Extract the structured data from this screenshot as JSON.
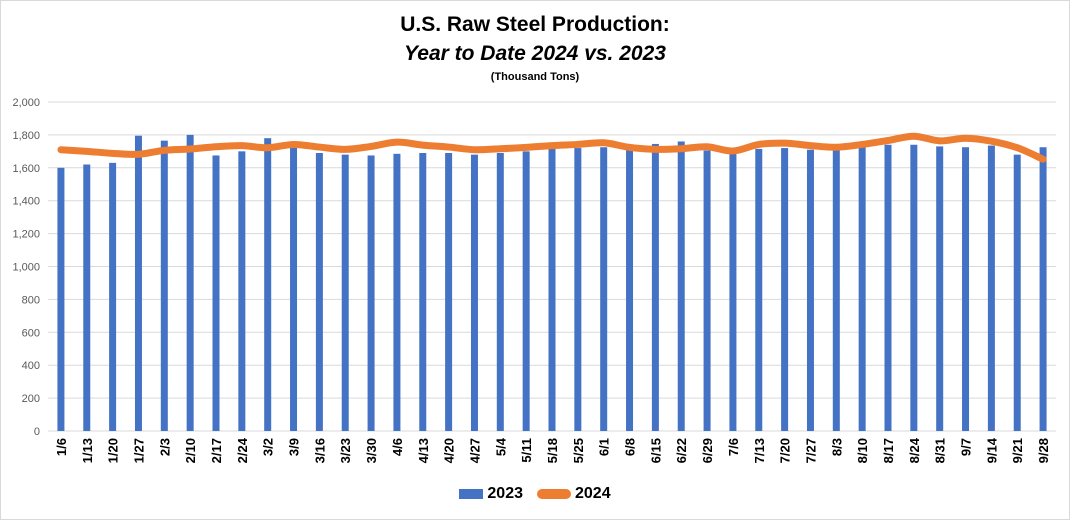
{
  "chart_data": {
    "type": "bar",
    "title": "U.S. Raw Steel Production:",
    "subtitle": "Year to Date 2024 vs. 2023",
    "unit_note": "(Thousand Tons)",
    "xlabel": "",
    "ylabel": "",
    "ylim": [
      0,
      2000
    ],
    "yticks": [
      0,
      200,
      400,
      600,
      800,
      1000,
      1200,
      1400,
      1600,
      1800,
      2000
    ],
    "ytick_labels": [
      "0",
      "200",
      "400",
      "600",
      "800",
      "1,000",
      "1,200",
      "1,400",
      "1,600",
      "1,800",
      "2,000"
    ],
    "grid": true,
    "legend_position": "bottom",
    "categories": [
      "1/6",
      "1/13",
      "1/20",
      "1/27",
      "2/3",
      "2/10",
      "2/17",
      "2/24",
      "3/2",
      "3/9",
      "3/16",
      "3/23",
      "3/30",
      "4/6",
      "4/13",
      "4/20",
      "4/27",
      "5/4",
      "5/11",
      "5/18",
      "5/25",
      "6/1",
      "6/8",
      "6/15",
      "6/22",
      "6/29",
      "7/6",
      "7/13",
      "7/20",
      "7/27",
      "8/3",
      "8/10",
      "8/17",
      "8/24",
      "8/31",
      "9/7",
      "9/14",
      "9/21",
      "9/28"
    ],
    "series": [
      {
        "name": "2023",
        "type": "bar",
        "color": "#4472C4",
        "values": [
          1600,
          1620,
          1630,
          1795,
          1765,
          1800,
          1675,
          1700,
          1780,
          1735,
          1690,
          1680,
          1675,
          1685,
          1690,
          1690,
          1680,
          1690,
          1700,
          1715,
          1720,
          1725,
          1710,
          1745,
          1760,
          1705,
          1685,
          1715,
          1720,
          1710,
          1715,
          1730,
          1740,
          1740,
          1730,
          1725,
          1735,
          1680,
          1725
        ]
      },
      {
        "name": "2024",
        "type": "line",
        "color": "#ED7D31",
        "values": [
          1710,
          1700,
          1688,
          1682,
          1706,
          1714,
          1728,
          1735,
          1722,
          1742,
          1726,
          1712,
          1730,
          1756,
          1738,
          1726,
          1710,
          1716,
          1724,
          1735,
          1742,
          1752,
          1724,
          1712,
          1716,
          1728,
          1702,
          1742,
          1750,
          1735,
          1725,
          1742,
          1766,
          1792,
          1764,
          1780,
          1762,
          1722,
          1652
        ]
      }
    ]
  },
  "colors": {
    "grid": "#d9d9d9",
    "axis_text": "#595959",
    "tick_text": "#000000"
  }
}
